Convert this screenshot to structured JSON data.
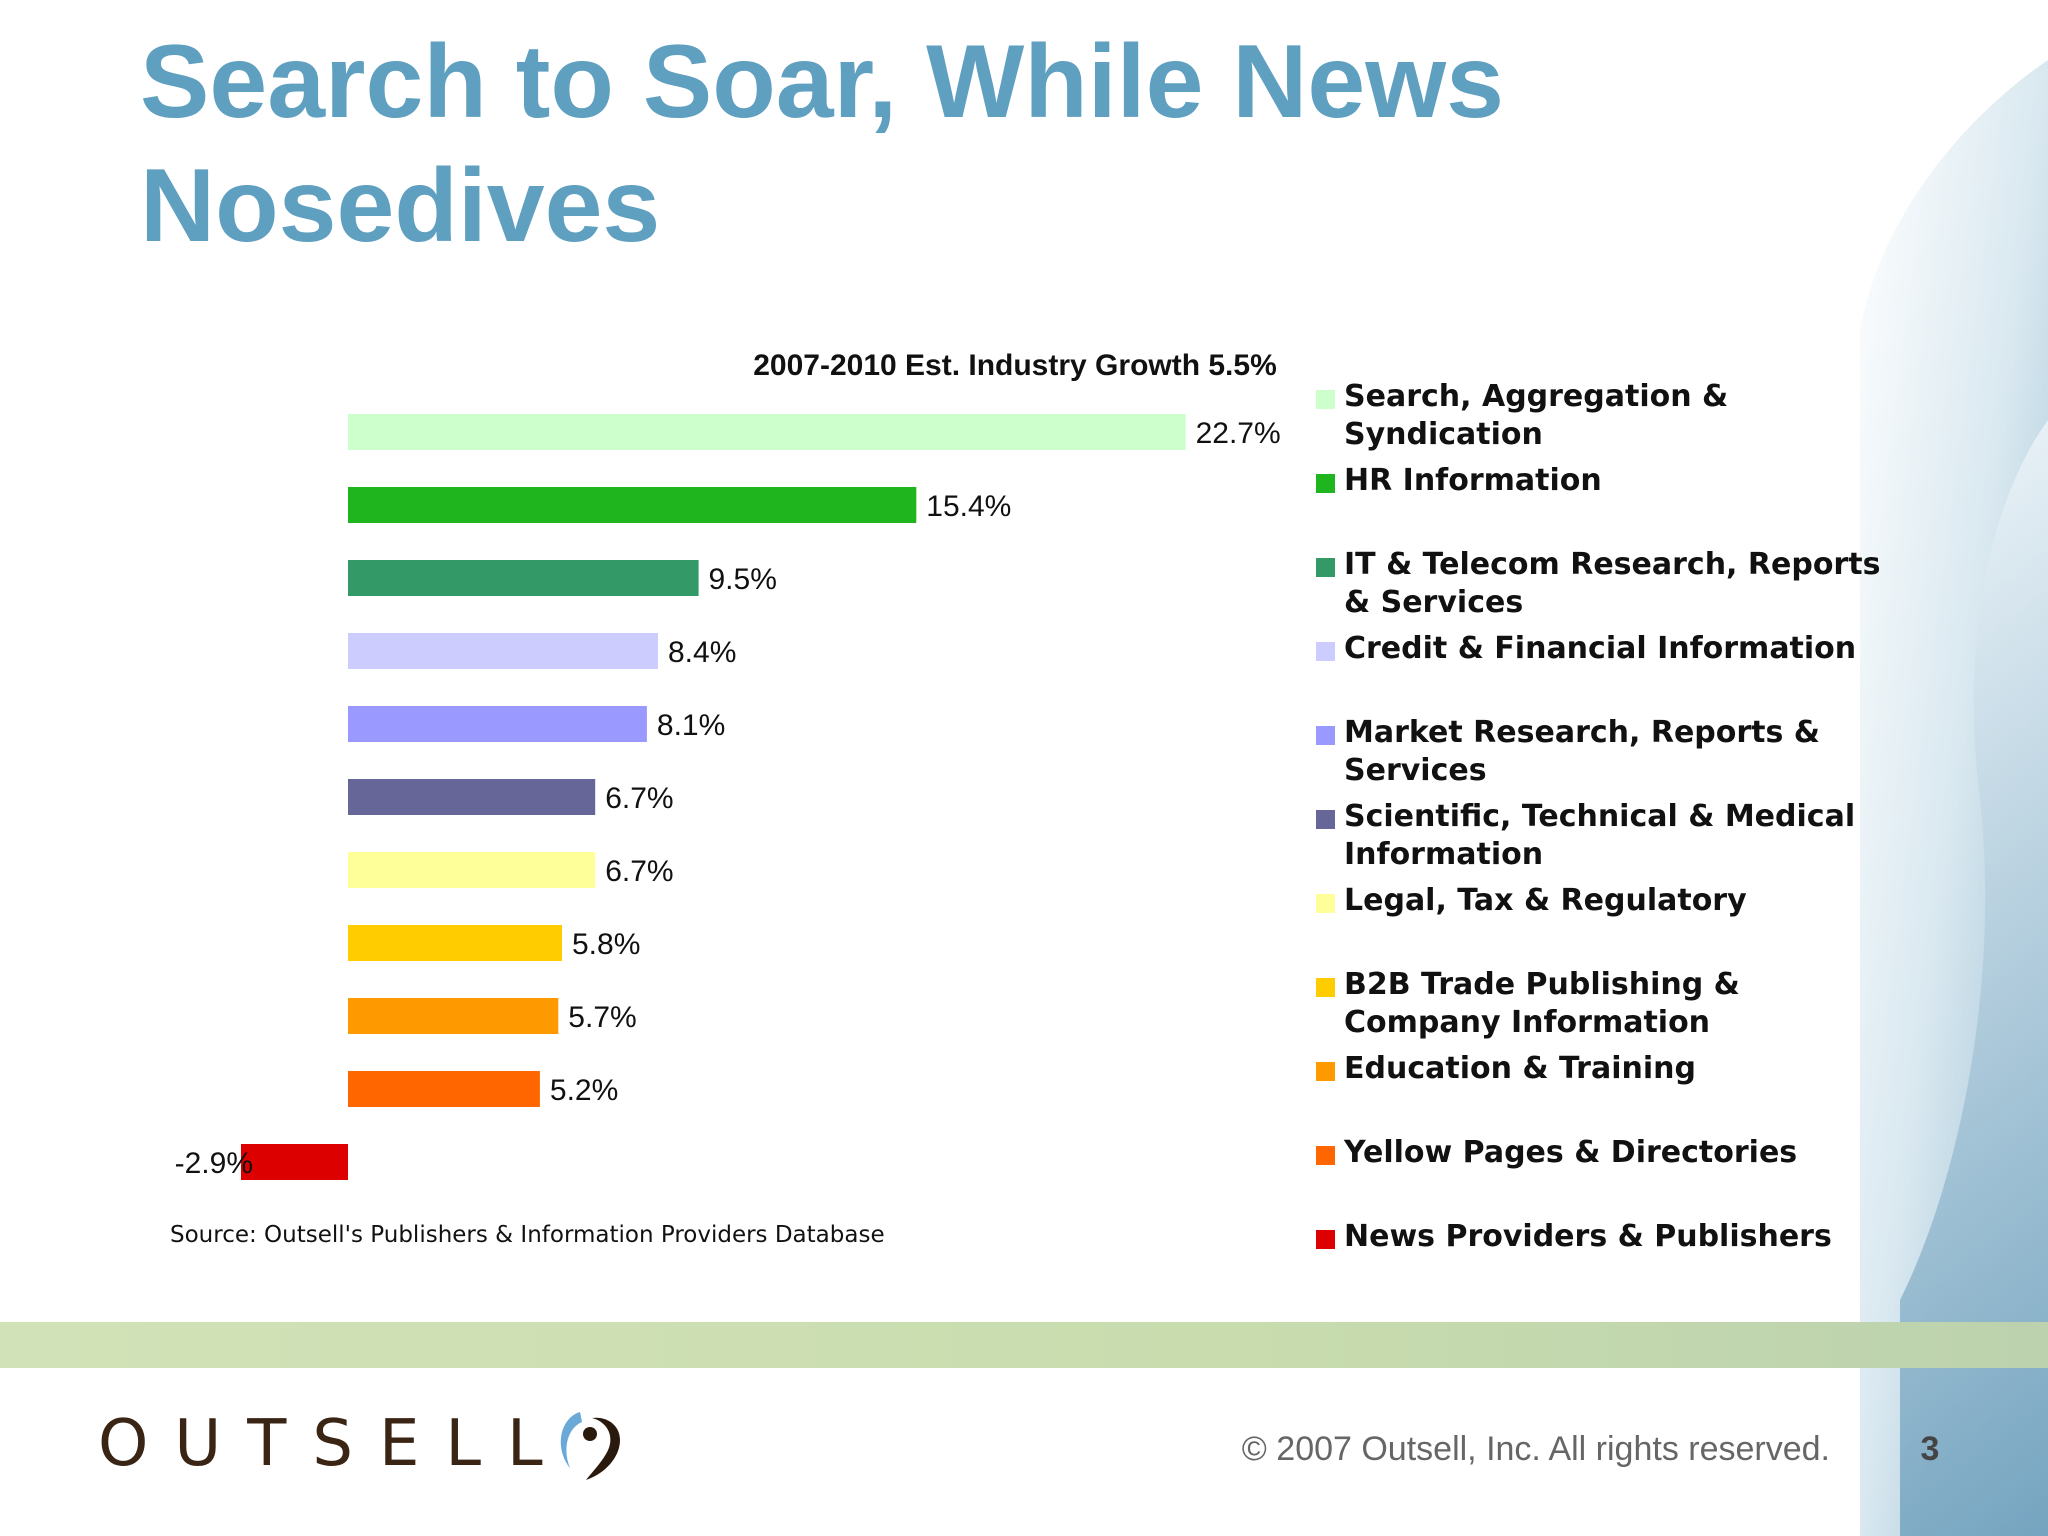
{
  "slide": {
    "title": "Search to Soar, While News Nosedives",
    "source": "Source: Outsell's Publishers & Information Providers Database",
    "logo_text": "OUTSELL",
    "copyright": "© 2007 Outsell, Inc. All rights reserved.",
    "page_number": "3"
  },
  "chart_data": {
    "type": "bar",
    "orientation": "horizontal",
    "title": "2007-2010 Est. Industry Growth 5.5%",
    "xlabel": "",
    "ylabel": "",
    "grid": false,
    "legend_position": "right",
    "categories": [
      "Search, Aggregation & Syndication",
      "HR Information",
      "IT & Telecom Research, Reports & Services",
      "Credit & Financial Information",
      "Market Research, Reports & Services",
      "Scientific, Technical & Medical Information",
      "Legal, Tax & Regulatory",
      "B2B Trade Publishing & Company Information",
      "Education & Training",
      "Yellow Pages & Directories",
      "News Providers & Publishers"
    ],
    "values": [
      22.7,
      15.4,
      9.5,
      8.4,
      8.1,
      6.7,
      6.7,
      5.8,
      5.7,
      5.2,
      -2.9
    ],
    "labels": [
      "22.7%",
      "15.4%",
      "9.5%",
      "8.4%",
      "8.1%",
      "6.7%",
      "6.7%",
      "5.8%",
      "5.7%",
      "5.2%",
      "-2.9%"
    ],
    "colors": [
      "#ccffcc",
      "#1fb51f",
      "#339966",
      "#ccccff",
      "#9999ff",
      "#666699",
      "#ffff99",
      "#ffcc00",
      "#ff9900",
      "#ff6600",
      "#dd0000"
    ],
    "legend_lines": [
      [
        "Search, Aggregation &",
        "Syndication"
      ],
      [
        "HR Information"
      ],
      [
        "IT & Telecom Research, Reports",
        "& Services"
      ],
      [
        "Credit & Financial Information"
      ],
      [
        "Market Research, Reports &",
        "Services"
      ],
      [
        "Scientific, Technical & Medical",
        "Information"
      ],
      [
        "Legal, Tax & Regulatory"
      ],
      [
        "B2B Trade Publishing &",
        "Company Information"
      ],
      [
        "Education & Training"
      ],
      [
        "Yellow Pages & Directories"
      ],
      [
        "News Providers & Publishers"
      ]
    ]
  }
}
